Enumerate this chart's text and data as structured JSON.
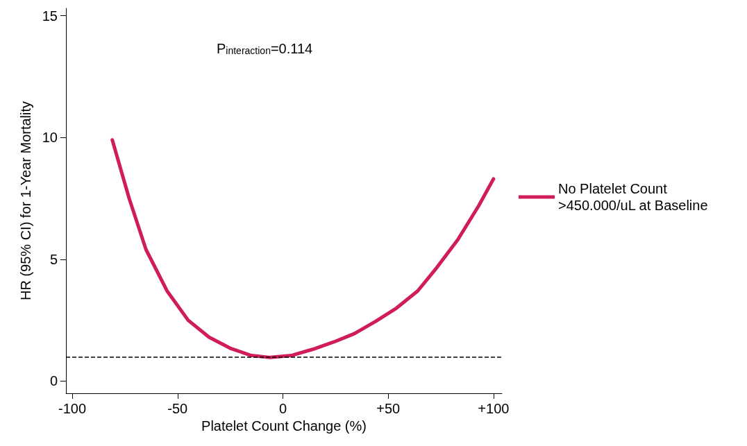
{
  "chart_data": {
    "type": "line",
    "xlabel": "Platelet Count Change (%)",
    "ylabel": "HR (95% CI) for 1-Year Mortality",
    "annotations": [
      "P$_{interaction}$=0.114"
    ],
    "series": [
      {
        "name": "No Platelet Count >450.000/uL at Baseline",
        "color": "#d01c5b",
        "x": [
          -81,
          -73,
          -65,
          -55,
          -45,
          -35,
          -25,
          -15,
          -6,
          4,
          14,
          24,
          34,
          44,
          54,
          64,
          73,
          83,
          93,
          100
        ],
        "values": [
          9.9,
          7.5,
          5.4,
          3.7,
          2.5,
          1.8,
          1.35,
          1.05,
          0.97,
          1.05,
          1.3,
          1.6,
          1.95,
          2.45,
          3.0,
          3.7,
          4.65,
          5.8,
          7.2,
          8.3
        ]
      }
    ],
    "xlim": [
      -103,
      104
    ],
    "xticks": [
      -100,
      -50,
      0,
      {
        "value": 50,
        "label": "+50"
      },
      {
        "value": 100,
        "label": "+100"
      }
    ],
    "ylim": [
      -0.5,
      15.3
    ],
    "yticks": [
      0,
      5,
      10,
      15
    ],
    "ref_lines": [
      {
        "axis": "y",
        "value": 1,
        "color": "#000000",
        "line_style": "dashed"
      }
    ],
    "grid": false,
    "legend": "right",
    "marker": "none",
    "line_style": "solid"
  }
}
